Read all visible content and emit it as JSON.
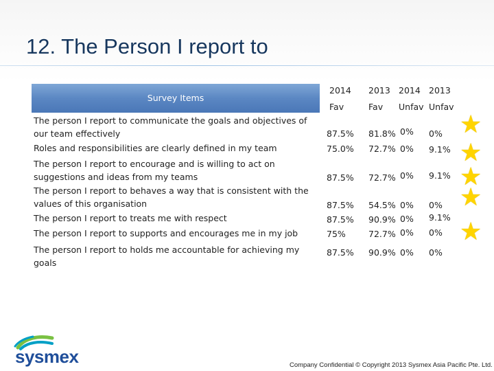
{
  "title": "12. The Person I report to",
  "table": {
    "header_label": "Survey Items",
    "columns": [
      {
        "year": "2014",
        "kind": "Fav"
      },
      {
        "year": "2013",
        "kind": "Fav"
      },
      {
        "year": "2014",
        "kind": "Unfav"
      },
      {
        "year": "2013",
        "kind": "Unfav"
      }
    ],
    "rows": [
      {
        "item": "The person I report to communicate the goals and objectives of our team effectively",
        "fav_2014": "87.5%",
        "fav_2013": "81.8%",
        "unfav_2014": "0%",
        "unfav_2013": "0%"
      },
      {
        "item": "Roles and responsibilities are clearly defined in my team",
        "fav_2014": "75.0%",
        "fav_2013": "72.7%",
        "unfav_2014": "0%",
        "unfav_2013": "9.1%"
      },
      {
        "item": "The person I report to encourage and is willing to act on suggestions and ideas from my teams",
        "fav_2014": "87.5%",
        "fav_2013": "72.7%",
        "unfav_2014": "0%",
        "unfav_2013": "9.1%"
      },
      {
        "item": "The person I report to behaves  a way that is consistent with the values of this organisation",
        "fav_2014": "87.5%",
        "fav_2013": "54.5%",
        "unfav_2014": "0%",
        "unfav_2013": "0%"
      },
      {
        "item": "The person I report to treats me with respect",
        "fav_2014": "87.5%",
        "fav_2013": "90.9%",
        "unfav_2014": "0%",
        "unfav_2013": "9.1%"
      },
      {
        "item": "The person I report to supports and encourages me in my job",
        "fav_2014": "75%",
        "fav_2013": "72.7%",
        "unfav_2014": "0%",
        "unfav_2013": "0%"
      },
      {
        "item": "The person I report to holds me accountable for achieving my goals",
        "fav_2014": "87.5%",
        "fav_2013": "90.9%",
        "unfav_2014": "0%",
        "unfav_2013": "0%"
      }
    ]
  },
  "stars": {
    "count": 5,
    "color": "#ffd400",
    "icon": "star-icon"
  },
  "logo": {
    "text": "sysmex",
    "colors": [
      "#7ac143",
      "#00a0c6",
      "#1f4e9a"
    ]
  },
  "footer": "Company Confidential © Copyright 2013 Sysmex Asia Pacific Pte. Ltd.",
  "colors": {
    "title": "#17375e",
    "header_bg": "#5b87c3",
    "brand": "#1f4e9a"
  }
}
